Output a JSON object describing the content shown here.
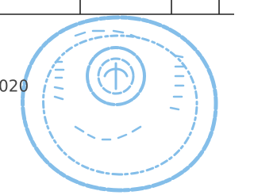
{
  "scan": {
    "margin_text": "020"
  }
}
